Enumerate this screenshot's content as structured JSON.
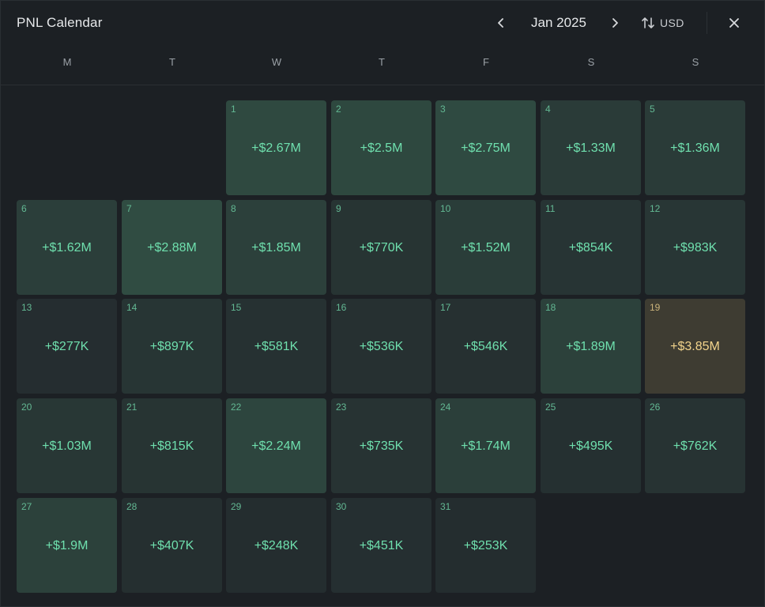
{
  "header": {
    "title": "PNL Calendar",
    "month": "Jan 2025",
    "currency": "USD"
  },
  "weekdays": [
    "M",
    "T",
    "W",
    "T",
    "F",
    "S",
    "S"
  ],
  "colors": {
    "background": "#1c2024",
    "profit_text": "#6fe0ae",
    "highlight_text": "#f2d48c",
    "highlight_bg": "#3e3c32"
  },
  "icons": {
    "prev": "chevron-left-icon",
    "next": "chevron-right-icon",
    "currency": "swap-vertical-icon",
    "close": "close-icon"
  },
  "days": [
    {
      "day": "1",
      "pnl": "+$2.67M",
      "intensity": 0.92
    },
    {
      "day": "2",
      "pnl": "+$2.5M",
      "intensity": 0.88
    },
    {
      "day": "3",
      "pnl": "+$2.75M",
      "intensity": 0.95
    },
    {
      "day": "4",
      "pnl": "+$1.33M",
      "intensity": 0.5
    },
    {
      "day": "5",
      "pnl": "+$1.36M",
      "intensity": 0.52
    },
    {
      "day": "6",
      "pnl": "+$1.62M",
      "intensity": 0.6
    },
    {
      "day": "7",
      "pnl": "+$2.88M",
      "intensity": 1.0
    },
    {
      "day": "8",
      "pnl": "+$1.85M",
      "intensity": 0.66
    },
    {
      "day": "9",
      "pnl": "+$770K",
      "intensity": 0.3
    },
    {
      "day": "10",
      "pnl": "+$1.52M",
      "intensity": 0.56
    },
    {
      "day": "11",
      "pnl": "+$854K",
      "intensity": 0.32
    },
    {
      "day": "12",
      "pnl": "+$983K",
      "intensity": 0.36
    },
    {
      "day": "13",
      "pnl": "+$277K",
      "intensity": 0.12
    },
    {
      "day": "14",
      "pnl": "+$897K",
      "intensity": 0.34
    },
    {
      "day": "15",
      "pnl": "+$581K",
      "intensity": 0.22
    },
    {
      "day": "16",
      "pnl": "+$536K",
      "intensity": 0.2
    },
    {
      "day": "17",
      "pnl": "+$546K",
      "intensity": 0.21
    },
    {
      "day": "18",
      "pnl": "+$1.89M",
      "intensity": 0.68
    },
    {
      "day": "19",
      "pnl": "+$3.85M",
      "intensity": 1.0,
      "highlight": true
    },
    {
      "day": "20",
      "pnl": "+$1.03M",
      "intensity": 0.4
    },
    {
      "day": "21",
      "pnl": "+$815K",
      "intensity": 0.3
    },
    {
      "day": "22",
      "pnl": "+$2.24M",
      "intensity": 0.8
    },
    {
      "day": "23",
      "pnl": "+$735K",
      "intensity": 0.28
    },
    {
      "day": "24",
      "pnl": "+$1.74M",
      "intensity": 0.64
    },
    {
      "day": "25",
      "pnl": "+$495K",
      "intensity": 0.19
    },
    {
      "day": "26",
      "pnl": "+$762K",
      "intensity": 0.29
    },
    {
      "day": "27",
      "pnl": "+$1.9M",
      "intensity": 0.68
    },
    {
      "day": "28",
      "pnl": "+$407K",
      "intensity": 0.16
    },
    {
      "day": "29",
      "pnl": "+$248K",
      "intensity": 0.1
    },
    {
      "day": "30",
      "pnl": "+$451K",
      "intensity": 0.18
    },
    {
      "day": "31",
      "pnl": "+$253K",
      "intensity": 0.1
    }
  ]
}
